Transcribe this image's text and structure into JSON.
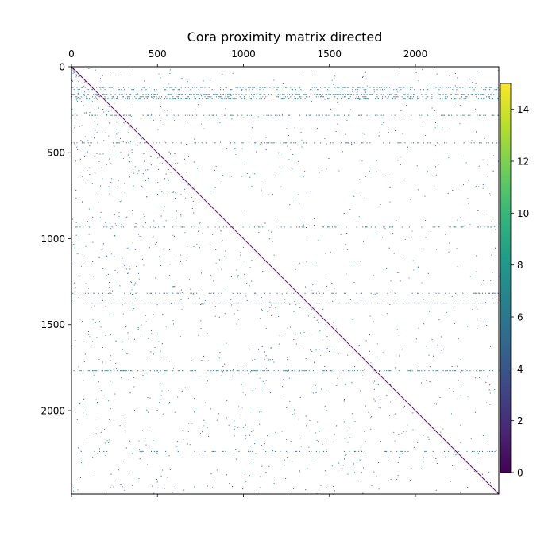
{
  "chart_data": {
    "type": "heatmap",
    "title": "Cora proximity matrix directed",
    "xlabel": "",
    "ylabel": "",
    "x_axis_position": "top",
    "xlim": [
      0,
      2485
    ],
    "ylim": [
      2485,
      0
    ],
    "x_ticks": [
      0,
      500,
      1000,
      1500,
      2000
    ],
    "x_tick_labels": [
      "0",
      "500",
      "1000",
      "1500",
      "2000"
    ],
    "y_ticks": [
      0,
      500,
      1000,
      1500,
      2000
    ],
    "y_tick_labels": [
      "0",
      "500",
      "1000",
      "1500",
      "2000"
    ],
    "grid": false,
    "colormap": "viridis",
    "colorbar": {
      "vmin": 0,
      "vmax": 15,
      "ticks": [
        0,
        2,
        4,
        6,
        8,
        10,
        12,
        14
      ],
      "tick_labels": [
        "0",
        "2",
        "4",
        "6",
        "8",
        "10",
        "12",
        "14"
      ],
      "position": "right"
    },
    "diagonal": {
      "from": [
        0,
        0
      ],
      "to": [
        2485,
        2485
      ],
      "value": 0.5,
      "color": "#440154"
    },
    "dense_rows": [
      {
        "row": 118,
        "value": 6,
        "density": 0.35
      },
      {
        "row": 130,
        "value": 5,
        "density": 0.25
      },
      {
        "row": 158,
        "value": 6,
        "density": 0.42
      },
      {
        "row": 172,
        "value": 5,
        "density": 0.3
      },
      {
        "row": 185,
        "value": 7,
        "density": 0.3
      },
      {
        "row": 280,
        "value": 6,
        "density": 0.3
      },
      {
        "row": 440,
        "value": 5,
        "density": 0.22
      },
      {
        "row": 930,
        "value": 6,
        "density": 0.2
      },
      {
        "row": 1315,
        "value": 5,
        "density": 0.25
      },
      {
        "row": 1372,
        "value": 6,
        "density": 0.4
      },
      {
        "row": 1765,
        "value": 6,
        "density": 0.4
      },
      {
        "row": 2235,
        "value": 5,
        "density": 0.18
      }
    ],
    "sparse_points": 1500,
    "sparse_value_range": [
      2,
      9
    ]
  }
}
